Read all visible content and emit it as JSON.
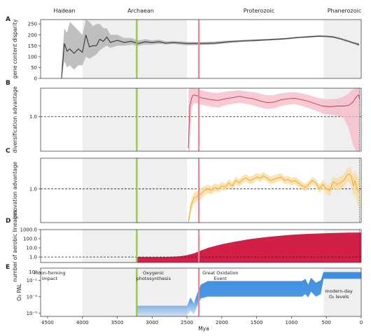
{
  "eons": [
    "Hadean",
    "Archaean",
    "Proterozoic",
    "Phanerozoic"
  ],
  "colors": {
    "gray_band": "#efefef",
    "green_line": "#8dc63f",
    "pink_line": "#e8879a",
    "A_fill": "#b5b5b5",
    "A_line": "#333333",
    "B_fill": "#f4b8c6",
    "B_line": "#c8304f",
    "C_fill": "#fbd99a",
    "C_line": "#f0a21c",
    "D_fill": "#d21f47",
    "E_fill": "#3b8de0"
  },
  "chart_data": {
    "type": "line",
    "xlabel": "Mya",
    "x_reversed": true,
    "xlim": [
      4600,
      0
    ],
    "xticks": [
      4500,
      4000,
      3500,
      3000,
      2500,
      2000,
      1500,
      1000,
      500,
      0
    ],
    "gray_bands_mya": [
      [
        4000,
        2500
      ],
      [
        540,
        0
      ]
    ],
    "green_line_mya": 3220,
    "pink_line_mya": 2330,
    "panels": [
      {
        "label": "A",
        "type": "line",
        "ylabel": "gene content disparity",
        "ylim": [
          0,
          270
        ],
        "yticks": [
          "0",
          "50",
          "100",
          "150",
          "200",
          "250"
        ],
        "yticks_values": [
          0,
          50,
          100,
          150,
          200,
          250
        ],
        "x": [
          4300,
          4260,
          4220,
          4180,
          4120,
          4060,
          4000,
          3950,
          3900,
          3850,
          3800,
          3750,
          3700,
          3650,
          3600,
          3500,
          3400,
          3300,
          3200,
          3100,
          3000,
          2900,
          2800,
          2700,
          2600,
          2500,
          2300,
          2100,
          1900,
          1700,
          1500,
          1300,
          1100,
          900,
          700,
          600,
          500,
          400,
          300,
          200,
          100,
          30
        ],
        "y": [
          0,
          160,
          125,
          135,
          115,
          135,
          120,
          200,
          145,
          150,
          150,
          180,
          170,
          190,
          165,
          175,
          165,
          170,
          160,
          168,
          165,
          168,
          162,
          165,
          163,
          160,
          160,
          162,
          168,
          172,
          175,
          178,
          182,
          188,
          192,
          194,
          193,
          190,
          182,
          172,
          162,
          155
        ],
        "lower": [
          0,
          80,
          50,
          60,
          40,
          60,
          60,
          100,
          90,
          100,
          110,
          130,
          140,
          150,
          140,
          150,
          150,
          155,
          150,
          155,
          155,
          158,
          155,
          158,
          155,
          152,
          153,
          155,
          162,
          167,
          170,
          174,
          178,
          184,
          188,
          190,
          189,
          185,
          178,
          168,
          157,
          148
        ],
        "upper": [
          60,
          230,
          210,
          260,
          240,
          220,
          200,
          270,
          260,
          240,
          250,
          250,
          230,
          230,
          200,
          200,
          185,
          185,
          175,
          180,
          175,
          178,
          170,
          172,
          170,
          168,
          167,
          169,
          174,
          177,
          180,
          182,
          186,
          192,
          196,
          198,
          197,
          195,
          187,
          177,
          167,
          162
        ]
      },
      {
        "label": "B",
        "type": "line",
        "ylabel": "diversification advantage",
        "yscale": "log",
        "ylim": [
          0.22,
          3.5
        ],
        "yticks": [
          "1.0"
        ],
        "yticks_values": [
          1
        ],
        "x": [
          2480,
          2460,
          2440,
          2420,
          2400,
          2350,
          2300,
          2250,
          2150,
          2050,
          1950,
          1850,
          1750,
          1650,
          1550,
          1450,
          1350,
          1250,
          1150,
          1050,
          950,
          850,
          750,
          650,
          550,
          450,
          350,
          250,
          180,
          120,
          80,
          40,
          20
        ],
        "y": [
          0.25,
          1.6,
          2.1,
          2.5,
          2.6,
          2.5,
          2.3,
          2.25,
          2.1,
          2.05,
          2.2,
          2.3,
          2.45,
          2.3,
          2.2,
          2.0,
          1.85,
          1.9,
          2.1,
          2.2,
          2.25,
          2.1,
          1.95,
          1.75,
          1.6,
          1.55,
          1.6,
          1.6,
          1.65,
          1.9,
          2.3,
          2.6,
          2.2
        ],
        "lower": [
          0.22,
          0.22,
          1.3,
          1.6,
          1.8,
          1.8,
          1.7,
          1.65,
          1.55,
          1.5,
          1.65,
          1.75,
          1.85,
          1.75,
          1.65,
          1.5,
          1.4,
          1.45,
          1.6,
          1.7,
          1.75,
          1.6,
          1.45,
          1.3,
          1.15,
          1.1,
          1.05,
          0.95,
          0.6,
          0.3,
          0.22,
          0.22,
          0.22
        ],
        "upper": [
          3.2,
          3.5,
          3.5,
          3.5,
          3.5,
          3.4,
          3.2,
          3.1,
          2.9,
          2.85,
          3.0,
          3.1,
          3.2,
          3.05,
          2.95,
          2.75,
          2.55,
          2.6,
          2.8,
          2.9,
          2.95,
          2.8,
          2.6,
          2.35,
          2.2,
          2.15,
          2.2,
          2.4,
          2.8,
          3.3,
          3.5,
          3.5,
          3.5
        ]
      },
      {
        "label": "C",
        "type": "line",
        "ylabel": "innovation advantage",
        "yscale": "log",
        "ylim": [
          0.35,
          2.6
        ],
        "yticks": [
          "1.0"
        ],
        "yticks_values": [
          1
        ],
        "x": [
          2480,
          2440,
          2400,
          2350,
          2300,
          2250,
          2200,
          2150,
          2100,
          2050,
          2000,
          1950,
          1900,
          1850,
          1800,
          1750,
          1700,
          1650,
          1600,
          1550,
          1500,
          1450,
          1400,
          1350,
          1300,
          1250,
          1200,
          1150,
          1100,
          1050,
          1000,
          950,
          900,
          850,
          800,
          750,
          700,
          650,
          600,
          550,
          500,
          450,
          400,
          350,
          300,
          250,
          200,
          170,
          140,
          110,
          90,
          60,
          30
        ],
        "y": [
          0.35,
          0.6,
          0.75,
          0.8,
          0.85,
          0.95,
          1.0,
          0.95,
          1.05,
          1.0,
          1.1,
          1.05,
          1.2,
          1.1,
          1.3,
          1.2,
          1.35,
          1.4,
          1.3,
          1.35,
          1.45,
          1.4,
          1.5,
          1.4,
          1.3,
          1.35,
          1.4,
          1.45,
          1.3,
          1.35,
          1.25,
          1.3,
          1.2,
          1.1,
          1.05,
          1.15,
          1.3,
          1.2,
          1.0,
          1.15,
          1.0,
          0.95,
          1.25,
          1.15,
          1.2,
          1.3,
          1.55,
          1.6,
          1.45,
          1.1,
          1.3,
          1.0,
          0.9
        ],
        "lower": [
          0.35,
          0.5,
          0.63,
          0.68,
          0.72,
          0.82,
          0.88,
          0.84,
          0.93,
          0.89,
          0.98,
          0.94,
          1.07,
          0.98,
          1.16,
          1.07,
          1.2,
          1.25,
          1.16,
          1.2,
          1.3,
          1.25,
          1.34,
          1.25,
          1.16,
          1.2,
          1.25,
          1.3,
          1.16,
          1.2,
          1.11,
          1.16,
          1.07,
          0.98,
          0.93,
          1.02,
          1.16,
          1.07,
          0.88,
          1.0,
          0.86,
          0.8,
          1.05,
          0.95,
          0.98,
          1.05,
          1.25,
          1.25,
          1.1,
          0.8,
          0.9,
          0.65,
          0.55
        ],
        "upper": [
          0.42,
          0.72,
          0.9,
          0.95,
          1.0,
          1.1,
          1.15,
          1.08,
          1.19,
          1.13,
          1.24,
          1.18,
          1.35,
          1.24,
          1.46,
          1.35,
          1.52,
          1.57,
          1.46,
          1.52,
          1.63,
          1.57,
          1.68,
          1.57,
          1.46,
          1.52,
          1.57,
          1.63,
          1.46,
          1.52,
          1.41,
          1.46,
          1.35,
          1.24,
          1.18,
          1.3,
          1.46,
          1.35,
          1.15,
          1.32,
          1.17,
          1.13,
          1.48,
          1.38,
          1.45,
          1.58,
          1.9,
          2.0,
          1.85,
          1.5,
          1.8,
          1.5,
          1.4
        ]
      },
      {
        "label": "D",
        "type": "area",
        "ylabel": "number of aerobic lineages",
        "yscale": "log",
        "ylim": [
          0.25,
          1000
        ],
        "yticks": [
          "1.0",
          "10.0",
          "100.0",
          "1000.0"
        ],
        "yticks_values": [
          1,
          10,
          100,
          1000
        ],
        "dashed_ref": 1,
        "x": [
          3220,
          3000,
          2800,
          2600,
          2500,
          2400,
          2300,
          2200,
          2000,
          1800,
          1600,
          1400,
          1200,
          1000,
          800,
          600,
          400,
          200,
          0
        ],
        "y": [
          1,
          1,
          1,
          1.2,
          1.6,
          2.5,
          5,
          10,
          25,
          50,
          90,
          140,
          200,
          270,
          330,
          380,
          420,
          460,
          480
        ]
      },
      {
        "label": "E",
        "type": "area",
        "ylabel": "O₂ PAL",
        "yscale": "log",
        "ylim": [
          4e-06,
          3
        ],
        "yticks": [
          "10⁻⁵",
          "10⁻³",
          "10⁻¹",
          "10⁰"
        ],
        "yticks_values": [
          1e-05,
          0.001,
          0.1,
          1
        ],
        "x": [
          3220,
          3000,
          2700,
          2500,
          2450,
          2400,
          2350,
          2300,
          2200,
          2000,
          1800,
          1500,
          1200,
          900,
          850,
          800,
          760,
          720,
          650,
          580,
          540,
          400,
          200,
          0
        ],
        "upper": [
          8e-05,
          8e-05,
          8e-05,
          8e-05,
          0.0008,
          0.00015,
          0.003,
          0.03,
          0.08,
          0.08,
          0.08,
          0.08,
          0.08,
          0.08,
          0.08,
          0.15,
          0.03,
          0.2,
          0.05,
          0.1,
          1.0,
          1.0,
          1.0,
          1.0
        ],
        "lower": [
          4e-06,
          4e-06,
          4e-06,
          4e-06,
          2e-05,
          6e-06,
          8e-05,
          0.0006,
          0.001,
          0.001,
          0.001,
          0.001,
          0.001,
          0.001,
          0.001,
          0.002,
          0.0008,
          0.004,
          0.001,
          0.002,
          0.15,
          0.15,
          0.15,
          0.15
        ]
      }
    ],
    "annotations": [
      {
        "id": "moon",
        "lines": [
          "Moon-forming",
          "impact"
        ],
        "x": 4470,
        "panel": "E"
      },
      {
        "id": "oxy",
        "lines": [
          "Oxygenic",
          "photosynthesis"
        ],
        "x": 2980,
        "panel": "E"
      },
      {
        "id": "goe",
        "lines": [
          "Great Oxidation",
          "Event"
        ],
        "x": 2020,
        "panel": "E"
      },
      {
        "id": "modern",
        "lines": [
          "modern-day",
          "O₂ levels"
        ],
        "x": 320,
        "panel": "E"
      }
    ]
  }
}
